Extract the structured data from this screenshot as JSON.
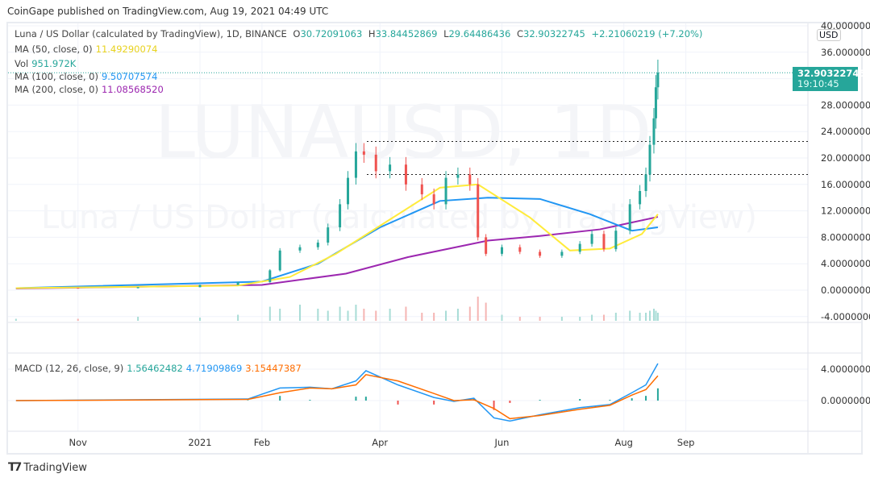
{
  "header": {
    "published": "CoinGape published on TradingView.com, Aug 19, 2021 04:49 UTC"
  },
  "legend": {
    "symbol": "Luna / US Dollar (calculated by TradingView), 1D, BINANCE",
    "o_label": "O",
    "o": "30.72091063",
    "h_label": "H",
    "h": "33.84452869",
    "l_label": "L",
    "l": "29.64486436",
    "c_label": "C",
    "c": "32.90322745",
    "change": "+2.21060219 (+7.20%)",
    "ma50_label": "MA (50, close, 0)",
    "ma50": "11.49290074",
    "vol_label": "Vol",
    "vol": "951.972K",
    "ma100_label": "MA (100, close, 0)",
    "ma100": "9.50707574",
    "ma200_label": "MA (200, close, 0)",
    "ma200": "11.08568520",
    "macd_label": "MACD (12, 26, close, 9)",
    "macd_hist": "1.56462482",
    "macd": "4.71909869",
    "macd_signal": "3.15447387"
  },
  "watermark": {
    "line1": "LUNAUSD, 1D",
    "line2": "Luna / US Dollar (calculated by TradingView)"
  },
  "price_axis": {
    "currency": "USD",
    "last_price": "32.90322745",
    "countdown": "19:10:45"
  },
  "brand": "TradingView",
  "colors": {
    "up": "#26a69a",
    "down": "#ef5350",
    "ma50": "#ffeb3b",
    "ma100": "#2196f3",
    "ma200": "#9c27b0",
    "macd": "#2196f3",
    "signal": "#ff6d00"
  },
  "chart_data": [
    {
      "type": "candlestick",
      "title": "",
      "ylim": [
        -4,
        40
      ],
      "grid": true,
      "y_ticks": [
        "40.00000000",
        "36.00000000",
        "28.00000000",
        "24.00000000",
        "20.00000000",
        "16.00000000",
        "12.00000000",
        "8.00000000",
        "4.00000000",
        "0.00000000",
        "-4.00000000"
      ],
      "x_ticks": [
        "Nov",
        "2021",
        "Feb",
        "Apr",
        "Jun",
        "Aug",
        "Sep"
      ],
      "dates": [
        "2020-10-01",
        "2020-11-01",
        "2020-12-01",
        "2021-01-01",
        "2021-01-20",
        "2021-02-05",
        "2021-02-10",
        "2021-02-20",
        "2021-03-01",
        "2021-03-06",
        "2021-03-12",
        "2021-03-16",
        "2021-03-20",
        "2021-03-24",
        "2021-03-30",
        "2021-04-06",
        "2021-04-14",
        "2021-04-22",
        "2021-04-28",
        "2021-05-04",
        "2021-05-10",
        "2021-05-16",
        "2021-05-20",
        "2021-05-24",
        "2021-06-01",
        "2021-06-10",
        "2021-06-20",
        "2021-07-01",
        "2021-07-10",
        "2021-07-16",
        "2021-07-22",
        "2021-07-28",
        "2021-08-04",
        "2021-08-09",
        "2021-08-12",
        "2021-08-14",
        "2021-08-16",
        "2021-08-17",
        "2021-08-18"
      ],
      "close": [
        0.35,
        0.3,
        0.45,
        0.8,
        1.2,
        3.0,
        6.0,
        6.5,
        7.2,
        9.5,
        13,
        17,
        21,
        20.5,
        18,
        19,
        16,
        14.5,
        13,
        17,
        17.5,
        16,
        8,
        5.5,
        6.5,
        5.8,
        5.2,
        5.8,
        7,
        8.5,
        6.2,
        9,
        13,
        15,
        17.5,
        22,
        26,
        30.7,
        32.9
      ],
      "reference_levels": [
        22.5,
        17.5
      ],
      "ma50": {
        "dates": [
          "2020-10-01",
          "2021-01-20",
          "2021-02-15",
          "2021-03-10",
          "2021-04-05",
          "2021-05-01",
          "2021-05-20",
          "2021-06-15",
          "2021-07-05",
          "2021-07-25",
          "2021-08-10",
          "2021-08-18"
        ],
        "values": [
          0.3,
          0.7,
          2,
          5.5,
          10.5,
          15.5,
          16,
          11,
          6,
          6.3,
          8.5,
          11.49
        ]
      },
      "ma100": {
        "dates": [
          "2020-10-01",
          "2021-02-01",
          "2021-03-01",
          "2021-04-01",
          "2021-05-01",
          "2021-05-25",
          "2021-06-20",
          "2021-07-15",
          "2021-08-05",
          "2021-08-18"
        ],
        "values": [
          0.3,
          1.3,
          4,
          9.5,
          13.5,
          14,
          13.8,
          11.5,
          9,
          9.51
        ]
      },
      "ma200": {
        "dates": [
          "2020-10-01",
          "2021-02-01",
          "2021-03-15",
          "2021-04-15",
          "2021-05-25",
          "2021-06-20",
          "2021-07-20",
          "2021-08-18"
        ],
        "values": [
          0.25,
          0.8,
          2.5,
          5,
          7.5,
          8.2,
          9.2,
          11.09
        ]
      },
      "volume_relative": [
        0.05,
        0.05,
        0.1,
        0.08,
        0.15,
        0.35,
        0.3,
        0.4,
        0.3,
        0.25,
        0.35,
        0.25,
        0.4,
        0.3,
        0.25,
        0.3,
        0.35,
        0.2,
        0.2,
        0.25,
        0.3,
        0.35,
        0.6,
        0.45,
        0.15,
        0.1,
        0.1,
        0.1,
        0.1,
        0.15,
        0.15,
        0.2,
        0.25,
        0.2,
        0.2,
        0.25,
        0.3,
        0.25,
        0.2
      ]
    },
    {
      "type": "macd",
      "ylim": [
        -3,
        5
      ],
      "y_ticks": [
        "4.00000000",
        "0.00000000"
      ],
      "dates": [
        "2020-10-01",
        "2021-01-25",
        "2021-02-10",
        "2021-02-25",
        "2021-03-08",
        "2021-03-20",
        "2021-03-25",
        "2021-04-10",
        "2021-04-28",
        "2021-05-08",
        "2021-05-18",
        "2021-05-28",
        "2021-06-05",
        "2021-06-20",
        "2021-07-10",
        "2021-07-25",
        "2021-08-05",
        "2021-08-12",
        "2021-08-18"
      ],
      "macd": [
        0,
        0.2,
        1.6,
        1.7,
        1.5,
        2.5,
        3.8,
        2.0,
        0.4,
        -0.1,
        0.3,
        -2.2,
        -2.6,
        -1.8,
        -0.9,
        -0.5,
        1.0,
        2.0,
        4.72
      ],
      "signal": [
        0,
        0.15,
        1.0,
        1.6,
        1.5,
        2.0,
        3.3,
        2.5,
        0.9,
        0.0,
        0.1,
        -1.0,
        -2.3,
        -1.9,
        -1.1,
        -0.6,
        0.7,
        1.4,
        3.15
      ],
      "histogram": [
        0,
        0.05,
        0.6,
        0.1,
        0,
        0.5,
        0.5,
        -0.5,
        -0.5,
        -0.1,
        0.2,
        -1.2,
        -0.3,
        0.1,
        0.2,
        0.1,
        0.3,
        0.6,
        1.56
      ]
    }
  ]
}
